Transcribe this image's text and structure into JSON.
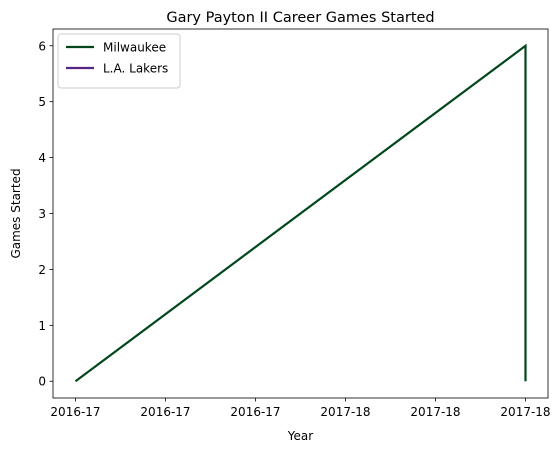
{
  "chart_data": {
    "type": "line",
    "title": "Gary Payton II Career Games Started",
    "xlabel": "Year",
    "ylabel": "Games Started",
    "x_tick_labels": [
      "2016-17",
      "2016-17",
      "2016-17",
      "2017-18",
      "2017-18",
      "2017-18"
    ],
    "y_ticks": [
      0,
      1,
      2,
      3,
      4,
      5,
      6
    ],
    "xlim": [
      -0.05,
      1.05
    ],
    "ylim": [
      -0.3,
      6.3
    ],
    "grid": false,
    "legend_position": "top-left",
    "series": [
      {
        "name": "Milwaukee",
        "color": "#00471b",
        "points": [
          {
            "x": 0,
            "y": 0
          },
          {
            "x": 1,
            "y": 6
          },
          {
            "x": 1,
            "y": 0
          }
        ]
      },
      {
        "name": "L.A. Lakers",
        "color": "#552583",
        "points": []
      }
    ]
  }
}
